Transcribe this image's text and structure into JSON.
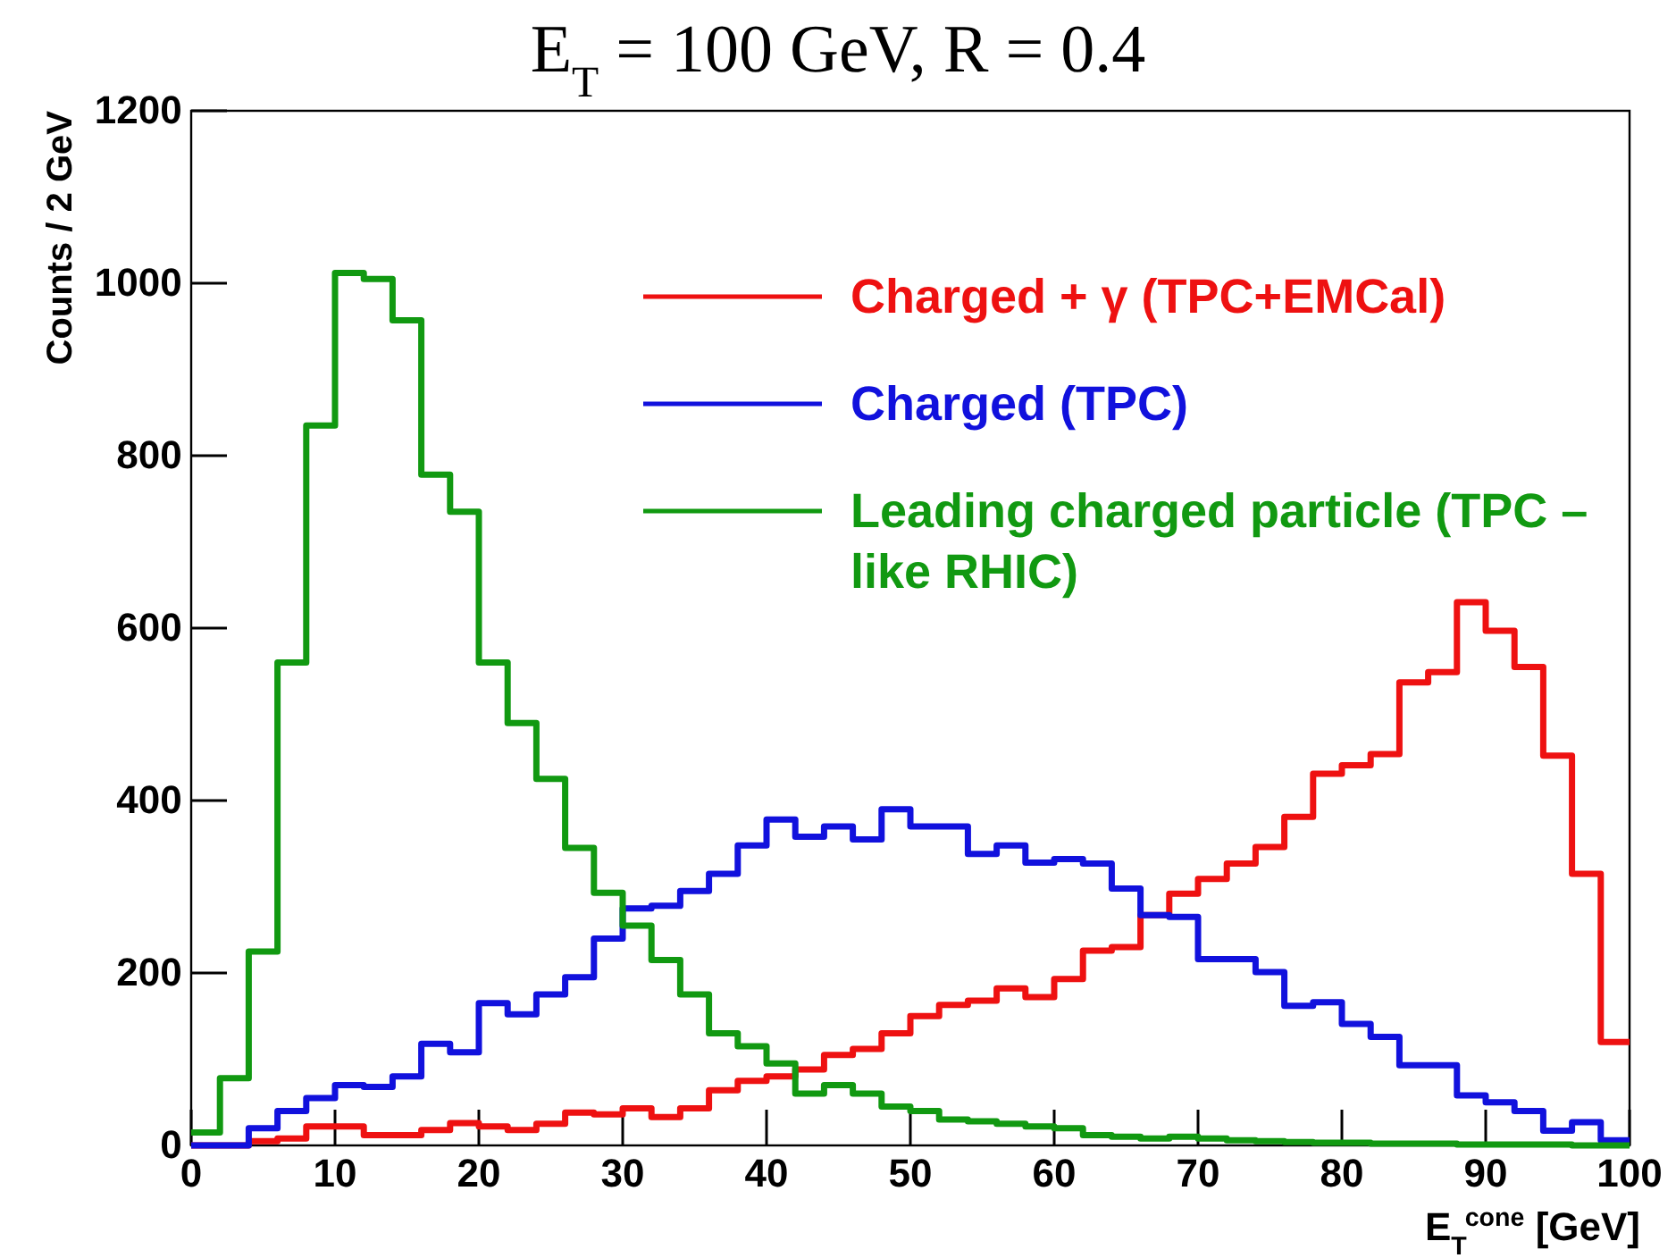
{
  "chart_data": {
    "type": "histogram",
    "title": "E$_{T}$ = 100 GeV, R = 0.4",
    "xlabel": "E$_{T}$$^{cone}$ [GeV]",
    "ylabel": "Counts / 2 GeV",
    "bins": [
      0,
      2,
      4,
      6,
      8,
      10,
      12,
      14,
      16,
      18,
      20,
      22,
      24,
      26,
      28,
      30,
      32,
      34,
      36,
      38,
      40,
      42,
      44,
      46,
      48,
      50,
      52,
      54,
      56,
      58,
      60,
      62,
      64,
      66,
      68,
      70,
      72,
      74,
      76,
      78,
      80,
      82,
      84,
      86,
      88,
      90,
      92,
      94,
      96,
      98,
      100
    ],
    "series": [
      {
        "name": "Charged + γ (TPC+EMCal)",
        "color": "#ee1111",
        "values": [
          0,
          0,
          5,
          8,
          22,
          22,
          12,
          12,
          18,
          26,
          22,
          18,
          25,
          38,
          36,
          43,
          33,
          43,
          64,
          75,
          80,
          88,
          105,
          112,
          130,
          150,
          163,
          168,
          182,
          172,
          193,
          226,
          230,
          267,
          292,
          309,
          327,
          346,
          381,
          431,
          441,
          454,
          537,
          549,
          630,
          597,
          555,
          452,
          315,
          120
        ]
      },
      {
        "name": "Charged (TPC)",
        "color": "#1111dd",
        "values": [
          0,
          0,
          20,
          40,
          55,
          70,
          68,
          80,
          118,
          108,
          165,
          152,
          175,
          195,
          240,
          275,
          278,
          295,
          315,
          348,
          378,
          358,
          370,
          355,
          390,
          370,
          370,
          338,
          348,
          328,
          332,
          327,
          298,
          267,
          265,
          216,
          216,
          201,
          162,
          166,
          141,
          126,
          93,
          93,
          58,
          50,
          40,
          17,
          27,
          6
        ]
      },
      {
        "name": "Leading charged particle (TPC – like RHIC)",
        "color": "#119911",
        "values": [
          15,
          78,
          225,
          560,
          835,
          1012,
          1005,
          957,
          778,
          735,
          560,
          490,
          425,
          345,
          293,
          255,
          215,
          175,
          130,
          115,
          95,
          60,
          70,
          60,
          45,
          40,
          30,
          28,
          25,
          22,
          20,
          12,
          10,
          8,
          10,
          8,
          6,
          5,
          4,
          3,
          3,
          2,
          2,
          2,
          1,
          1,
          1,
          1,
          0,
          0
        ]
      }
    ],
    "xlim": [
      0,
      100
    ],
    "ylim": [
      0,
      1200
    ],
    "xticks": [
      0,
      10,
      20,
      30,
      40,
      50,
      60,
      70,
      80,
      90,
      100
    ],
    "yticks": [
      0,
      200,
      400,
      600,
      800,
      1000,
      1200
    ],
    "grid": false,
    "legend": "top right"
  }
}
